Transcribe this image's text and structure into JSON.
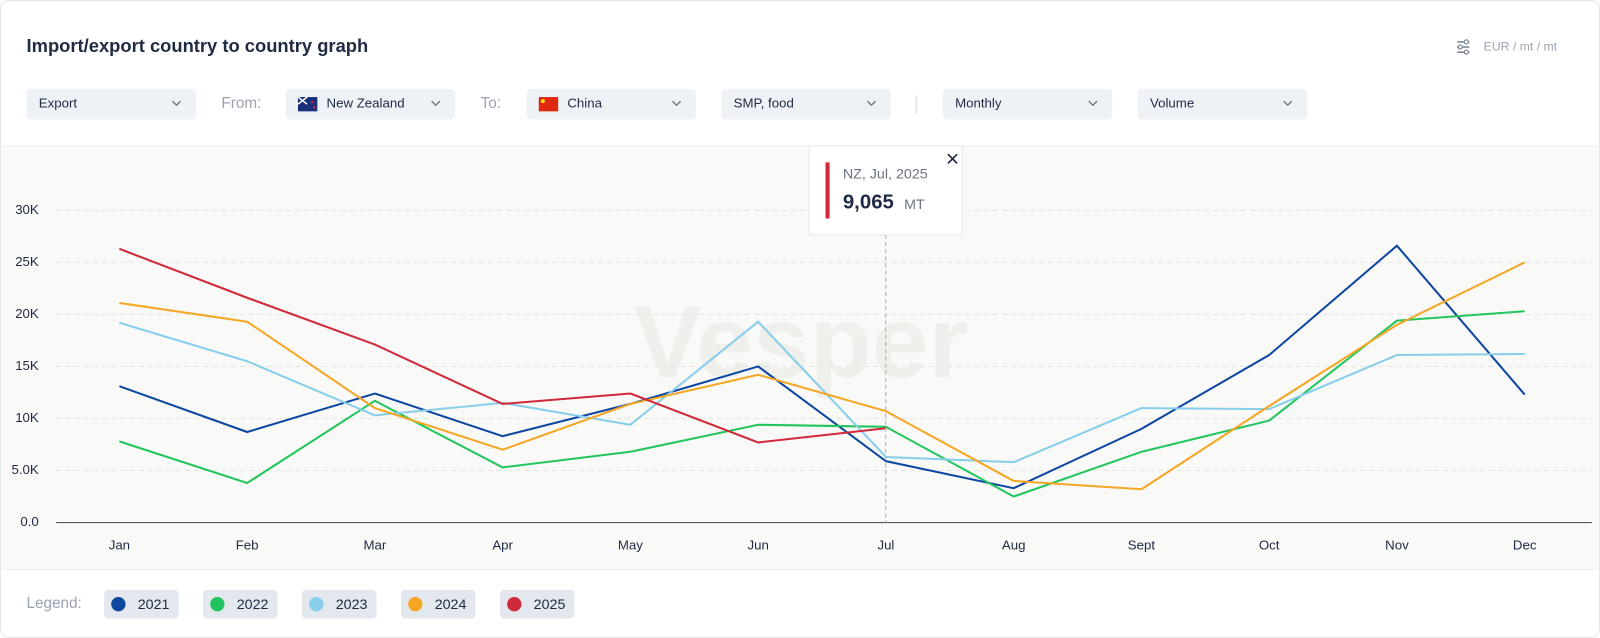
{
  "header": {
    "title": "Import/export country to country graph",
    "units": "EUR / mt / mt"
  },
  "filters": {
    "direction": "Export",
    "from_label": "From:",
    "from": "New Zealand",
    "to_label": "To:",
    "to": "China",
    "product": "SMP, food",
    "period": "Monthly",
    "measure": "Volume"
  },
  "watermark": "Vesper",
  "tooltip": {
    "title": "NZ, Jul, 2025",
    "label": "9,065",
    "unit": "MT"
  },
  "legend_label": "Legend:",
  "chart_data": {
    "type": "line",
    "categories": [
      "Jan",
      "Feb",
      "Mar",
      "Apr",
      "May",
      "Jun",
      "Jul",
      "Aug",
      "Sept",
      "Oct",
      "Nov",
      "Dec"
    ],
    "series": [
      {
        "name": "2021",
        "color": "#0d47a1",
        "values": [
          13100,
          8700,
          12400,
          8300,
          11400,
          15000,
          5900,
          3300,
          9000,
          16100,
          26600,
          12300
        ]
      },
      {
        "name": "2022",
        "color": "#22c55e",
        "values": [
          7800,
          3800,
          11700,
          5300,
          6800,
          9400,
          9200,
          2500,
          6800,
          9800,
          19400,
          20300
        ]
      },
      {
        "name": "2023",
        "color": "#87ceeb",
        "values": [
          19200,
          15500,
          10300,
          11500,
          9400,
          19300,
          6300,
          5800,
          11000,
          10900,
          16100,
          16200
        ]
      },
      {
        "name": "2024",
        "color": "#f5a623",
        "values": [
          21100,
          19300,
          11000,
          7000,
          11400,
          14200,
          10700,
          4000,
          3200,
          11200,
          19000,
          25000
        ]
      },
      {
        "name": "2025",
        "color": "#d0293b",
        "values": [
          26300,
          21600,
          17100,
          11400,
          12400,
          7700,
          9065,
          null,
          null,
          null,
          null,
          null
        ]
      }
    ],
    "ylim": [
      0,
      30000
    ],
    "yticks": [
      {
        "value": 0,
        "label": "0.0"
      },
      {
        "value": 5000,
        "label": "5.0K"
      },
      {
        "value": 10000,
        "label": "10K"
      },
      {
        "value": 15000,
        "label": "15K"
      },
      {
        "value": 20000,
        "label": "20K"
      },
      {
        "value": 25000,
        "label": "25K"
      },
      {
        "value": 30000,
        "label": "30K"
      }
    ],
    "grid": true
  }
}
